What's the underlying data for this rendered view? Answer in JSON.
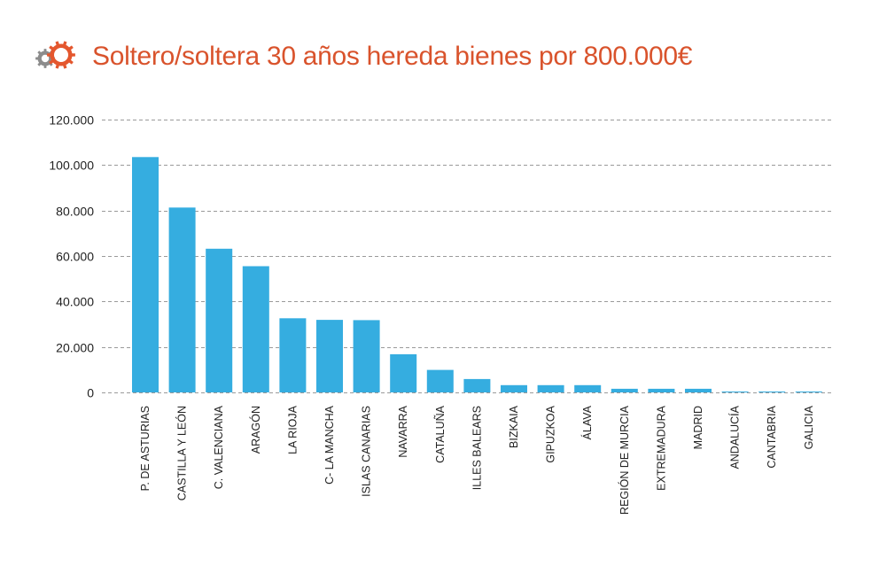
{
  "header": {
    "title": "Soltero/soltera 30 años hereda bienes por 800.000€",
    "icon": "gear-icon"
  },
  "colors": {
    "title": "#d9532c",
    "bar": "#35ade0",
    "gear_large": "#e4572e",
    "gear_small": "#8c8c8c"
  },
  "chart_data": {
    "type": "bar",
    "categories": [
      "P. DE ASTURIAS",
      "CASTILLA Y LEÓN",
      "C. VALENCIANA",
      "ARAGÓN",
      "LA RIOJA",
      "C- LA MANCHA",
      "ISLAS CANARIAS",
      "NAVARRA",
      "CATALUÑA",
      "ILLES BALEARS",
      "BIZKAIA",
      "GIPUZKOA",
      "ÁLAVA",
      "REGIÓN DE MURCIA",
      "EXTREMADURA",
      "MADRID",
      "ANDALUCÍA",
      "CANTABRIA",
      "GALICIA"
    ],
    "values": [
      103500,
      81300,
      63200,
      55500,
      32600,
      31900,
      31800,
      16800,
      9900,
      5900,
      3200,
      3200,
      3200,
      1600,
      1600,
      1600,
      300,
      300,
      300
    ],
    "yticks": [
      0,
      20000,
      40000,
      60000,
      80000,
      100000,
      120000
    ],
    "ytick_labels": [
      "0",
      "20.000",
      "40.000",
      "60.000",
      "80.000",
      "100.000",
      "120.000"
    ],
    "ylim": [
      0,
      120000
    ],
    "grid": true,
    "title": "Soltero/soltera 30 años hereda bienes por 800.000€",
    "xlabel": "",
    "ylabel": ""
  }
}
